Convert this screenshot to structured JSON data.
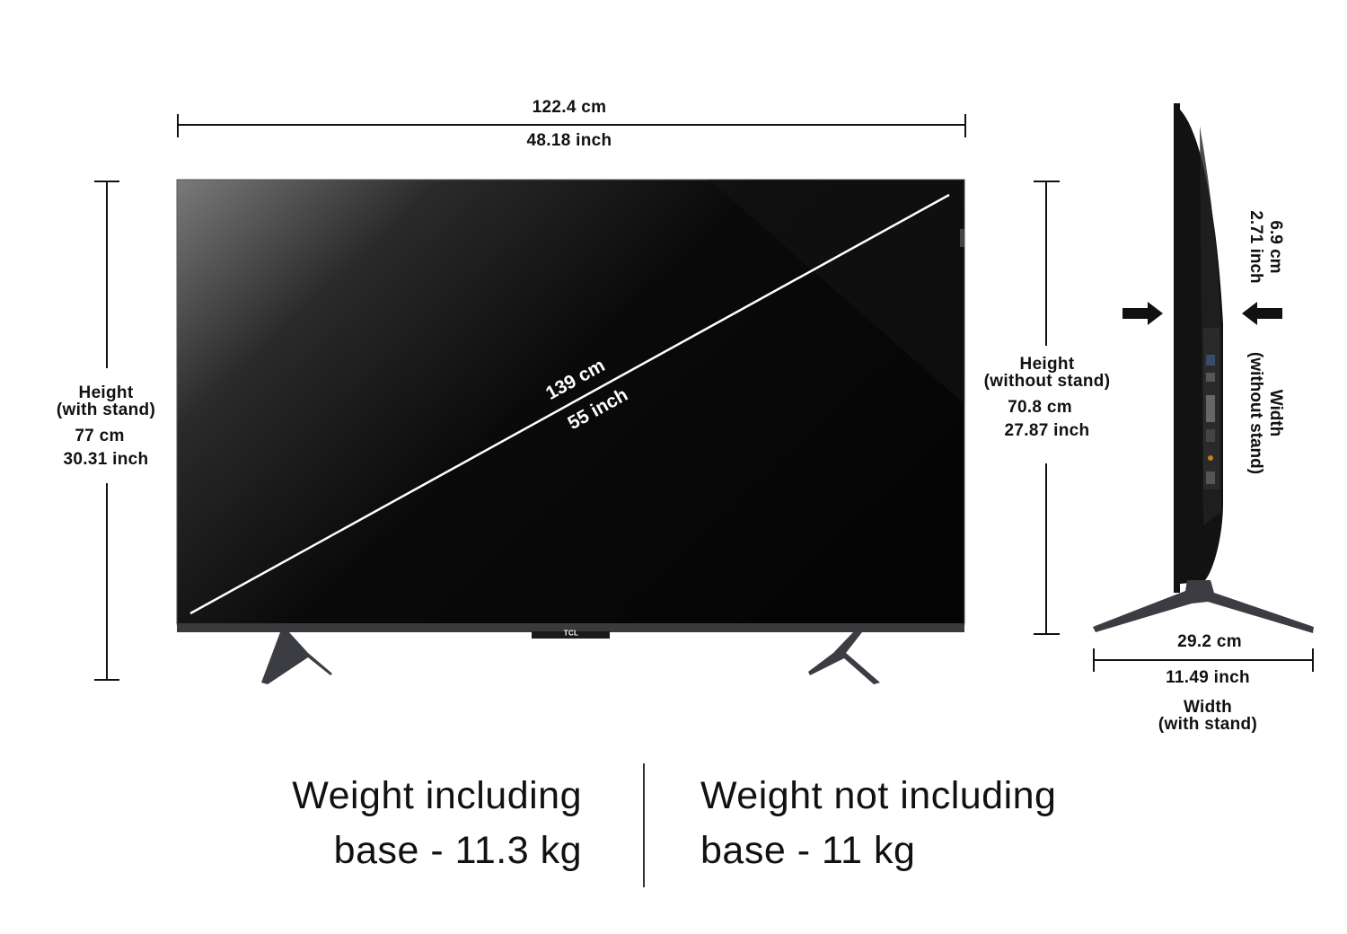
{
  "overall_width": {
    "cm": "122.4 cm",
    "inch": "48.18 inch"
  },
  "diagonal": {
    "cm": "139 cm",
    "inch": "55 inch"
  },
  "height_with_stand": {
    "label": "Height",
    "sublabel": "(with stand)",
    "cm": "77 cm",
    "inch": "30.31 inch"
  },
  "height_without_stand": {
    "label": "Height",
    "sublabel": "(without stand)",
    "cm": "70.8 cm",
    "inch": "27.87 inch"
  },
  "depth_without_stand": {
    "cm": "6.9 cm",
    "inch": "2.71 inch",
    "label": "Width",
    "sublabel": "(without stand)"
  },
  "depth_with_stand": {
    "cm": "29.2 cm",
    "inch": "11.49 inch",
    "label": "Width",
    "sublabel": "(with stand)"
  },
  "brand_logo": "TCL",
  "weight": {
    "including_line1": "Weight including",
    "including_line2": "base - 11.3 kg",
    "excluding_line1": "Weight not including",
    "excluding_line2": "base - 11 kg"
  },
  "colors": {
    "screen": "#050505",
    "bezel": "#3a3a3c",
    "stand": "#3b3d42",
    "line": "#111111"
  }
}
